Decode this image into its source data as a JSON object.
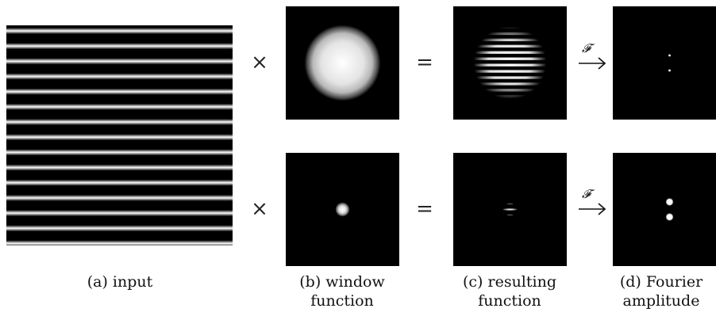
{
  "operators": {
    "times": "×",
    "equals": "=",
    "fourier_symbol": "𝓕"
  },
  "captions": {
    "a": "(a) input",
    "b_line1": "(b) window",
    "b_line2": "function",
    "c_line1": "(c) resulting",
    "c_line2": "function",
    "d_line1": "(d) Fourier",
    "d_line2": "amplitude"
  },
  "colors": {
    "panel_background": "#000000",
    "stripe": "#ffffff"
  }
}
